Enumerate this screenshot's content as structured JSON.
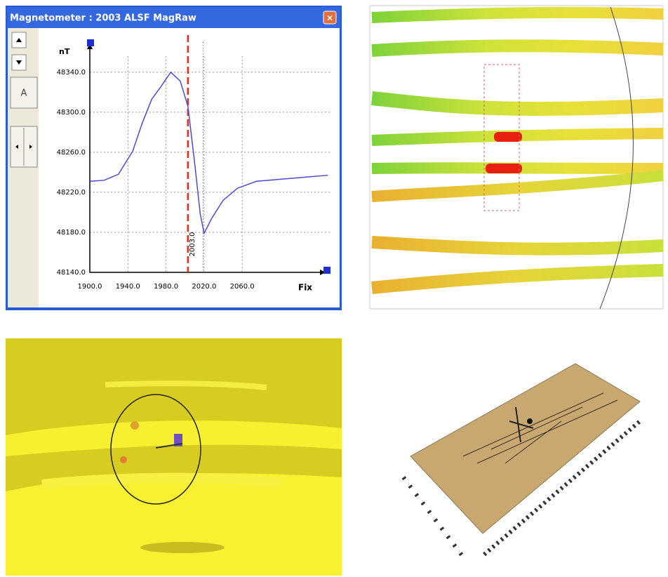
{
  "window": {
    "title": "Magnetometer : 2003 ALSF MagRaw",
    "toolbar_button": "A"
  },
  "chart_data": {
    "type": "line",
    "y_label": "nT",
    "x_label": "Fix",
    "x": [
      1900,
      1915,
      1930,
      1945,
      1955,
      1965,
      1975,
      1985,
      1995,
      2003,
      2010,
      2016,
      2020,
      2028,
      2040,
      2055,
      2075,
      2100,
      2125,
      2150
    ],
    "series": [
      {
        "color": "#4a4adc",
        "values": [
          48231,
          48232,
          48238,
          48261,
          48289,
          48313,
          48326,
          48340,
          48331,
          48306,
          48250,
          48198,
          48179,
          48194,
          48212,
          48224,
          48231,
          48233,
          48235,
          48237
        ]
      }
    ],
    "xlim": [
      1900,
      2152
    ],
    "ylim": [
      48140,
      48356
    ],
    "xticks": [
      {
        "value": 1900,
        "label": "1900.0"
      },
      {
        "value": 1940,
        "label": "1940.0"
      },
      {
        "value": 1980,
        "label": "1980.0"
      },
      {
        "value": 2020,
        "label": "2020.0"
      },
      {
        "value": 2060,
        "label": "2060.0"
      }
    ],
    "yticks": [
      {
        "value": 48140,
        "label": "48140.0"
      },
      {
        "value": 48180,
        "label": "48180.0"
      },
      {
        "value": 48220,
        "label": "48220.0"
      },
      {
        "value": 48260,
        "label": "48260.0"
      },
      {
        "value": 48300,
        "label": "48300.0"
      },
      {
        "value": 48340,
        "label": "48340.0"
      }
    ],
    "grid": true,
    "cursor": {
      "value": 2003,
      "label": "2003.0",
      "color": "#e03020"
    },
    "marker_x": 2019
  }
}
